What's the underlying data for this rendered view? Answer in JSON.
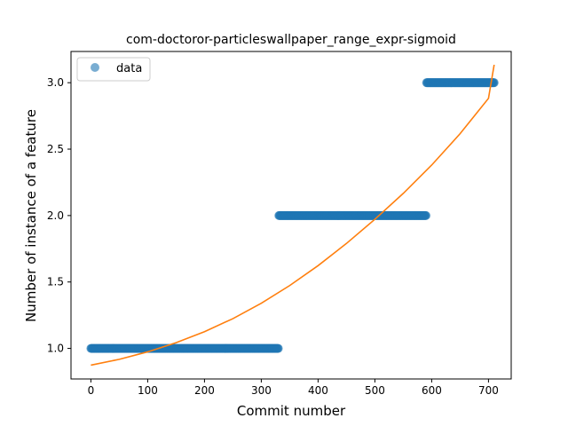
{
  "chart_data": {
    "type": "scatter",
    "title": "com-doctoror-particleswallpaper_range_expr-sigmoid",
    "xlabel": "Commit number",
    "ylabel": "Number of instance of a feature",
    "xlim": [
      -35,
      740
    ],
    "ylim": [
      0.77,
      3.235
    ],
    "xticks": [
      0,
      100,
      200,
      300,
      400,
      500,
      600,
      700
    ],
    "yticks": [
      1.0,
      1.5,
      2.0,
      2.5,
      3.0
    ],
    "ytick_labels": [
      "1.0",
      "1.5",
      "2.0",
      "2.5",
      "3.0"
    ],
    "grid": false,
    "legend_position": "top-left",
    "series": [
      {
        "name": "data",
        "kind": "scatter",
        "color": "#1f77b4",
        "segments": [
          {
            "x_start": 0,
            "x_end": 330,
            "y": 1
          },
          {
            "x_start": 331,
            "x_end": 590,
            "y": 2
          },
          {
            "x_start": 591,
            "x_end": 710,
            "y": 3
          }
        ]
      },
      {
        "kind": "line",
        "color": "#ff7f0e",
        "x": [
          0,
          50,
          100,
          150,
          200,
          250,
          300,
          350,
          400,
          450,
          500,
          550,
          600,
          650,
          700,
          710
        ],
        "y": [
          0.874,
          0.918,
          0.974,
          1.043,
          1.126,
          1.224,
          1.34,
          1.473,
          1.623,
          1.79,
          1.972,
          2.167,
          2.38,
          2.616,
          2.882,
          3.135
        ]
      }
    ]
  }
}
